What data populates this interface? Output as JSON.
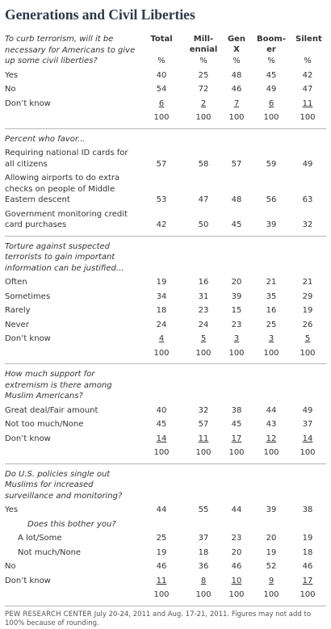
{
  "title": "Generations and Civil Liberties",
  "columns": [
    "Total",
    "Mill-\nennial",
    "Gen\nX",
    "Boom-\ner",
    "Silent"
  ],
  "sections": [
    {
      "question": "To curb terrorism, will it be necessary for Americans to give up some civil liberties?",
      "percent_row": [
        "%",
        "%",
        "%",
        "%",
        "%"
      ],
      "rows": [
        {
          "label": "Yes",
          "values": [
            40,
            25,
            48,
            45,
            42
          ]
        },
        {
          "label": "No",
          "values": [
            54,
            72,
            46,
            49,
            47
          ]
        },
        {
          "label": "Don’t know",
          "values": [
            6,
            2,
            7,
            6,
            11
          ]
        }
      ],
      "totals": [
        100,
        100,
        100,
        100,
        100
      ]
    },
    {
      "question": "Percent who favor...",
      "rows": [
        {
          "label": "Requiring national ID cards for all citizens",
          "values": [
            57,
            58,
            57,
            59,
            49
          ]
        },
        {
          "label": "Allowing airports to do extra checks on people of Middle Eastern descent",
          "values": [
            53,
            47,
            48,
            56,
            63
          ]
        },
        {
          "label": "Government monitoring credit card purchases",
          "values": [
            42,
            50,
            45,
            39,
            32
          ]
        }
      ]
    },
    {
      "question": "Torture against suspected terrorists to gain important information can be justified...",
      "rows": [
        {
          "label": "Often",
          "values": [
            19,
            16,
            20,
            21,
            21
          ]
        },
        {
          "label": "Sometimes",
          "values": [
            34,
            31,
            39,
            35,
            29
          ]
        },
        {
          "label": "Rarely",
          "values": [
            18,
            23,
            15,
            16,
            19
          ]
        },
        {
          "label": "Never",
          "values": [
            24,
            24,
            23,
            25,
            26
          ]
        },
        {
          "label": "Don’t know",
          "values": [
            4,
            5,
            3,
            3,
            5
          ]
        }
      ],
      "totals": [
        100,
        100,
        100,
        100,
        100
      ]
    },
    {
      "question": "How much support for extremism is there among Muslim Americans?",
      "rows": [
        {
          "label": "Great deal/Fair amount",
          "values": [
            40,
            32,
            38,
            44,
            49
          ]
        },
        {
          "label": "Not too much/None",
          "values": [
            45,
            57,
            45,
            43,
            37
          ]
        },
        {
          "label": "Don’t know",
          "values": [
            14,
            11,
            17,
            12,
            14
          ]
        }
      ],
      "totals": [
        100,
        100,
        100,
        100,
        100
      ]
    },
    {
      "question": "Do U.S. policies single out Muslims for increased surveillance and monitoring?",
      "rows": [
        {
          "label": "Yes",
          "values": [
            44,
            55,
            44,
            39,
            38
          ],
          "followup": {
            "question": "Does this bother you?",
            "rows": [
              {
                "label": "A lot/Some",
                "values": [
                  25,
                  37,
                  23,
                  20,
                  19
                ]
              },
              {
                "label": "Not much/None",
                "values": [
                  19,
                  18,
                  20,
                  19,
                  18
                ]
              }
            ]
          }
        },
        {
          "label": "No",
          "values": [
            46,
            36,
            46,
            52,
            46
          ]
        },
        {
          "label": "Don’t know",
          "values": [
            11,
            8,
            10,
            9,
            17
          ]
        }
      ],
      "totals": [
        100,
        100,
        100,
        100,
        100
      ]
    }
  ],
  "footer": {
    "source": "PEW RESEARCH CENTER",
    "note": "July 20-24, 2011 and Aug. 17-21, 2011. Figures may not add to 100% because of rounding."
  }
}
